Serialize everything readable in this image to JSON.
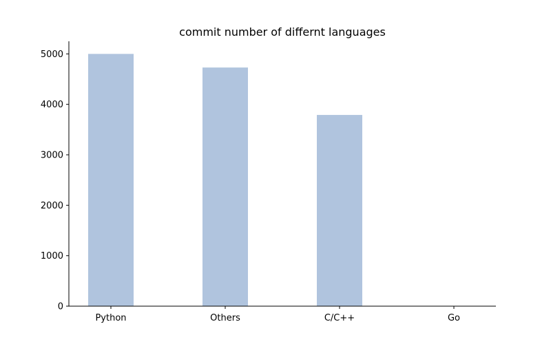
{
  "chart_data": {
    "type": "bar",
    "title": "commit number of differnt languages",
    "xlabel": "",
    "ylabel": "",
    "categories": [
      "Python",
      "Others",
      "C/C++",
      "Go"
    ],
    "values": [
      5000,
      4730,
      3790,
      5
    ],
    "ylim": [
      0,
      5250
    ],
    "yticks": [
      0,
      1000,
      2000,
      3000,
      4000,
      5000
    ],
    "grid": false,
    "bar_color": "#b0c4de",
    "spines": [
      "left",
      "bottom"
    ]
  }
}
